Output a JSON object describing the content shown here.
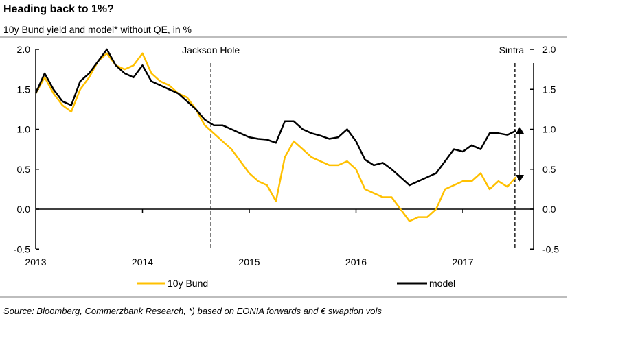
{
  "title": "Heading back to 1%?",
  "subtitle": "10y Bund yield and model* without QE, in %",
  "source": "Source: Bloomberg, Commerzbank Research, *) based on EONIA forwards and € swaption vols",
  "chart_data": {
    "type": "line",
    "ylim": [
      -0.5,
      2.0
    ],
    "yticks": [
      "2.0",
      "1.5",
      "1.0",
      "0.5",
      "0.0",
      "-0.5"
    ],
    "xticks": [
      "2013",
      "2014",
      "2015",
      "2016",
      "2017"
    ],
    "grid": false,
    "legend": "bottom",
    "annotations": [
      {
        "label": "Jackson Hole",
        "date": "2014-08-22"
      },
      {
        "label": "Sintra",
        "date": "2017-06-27"
      }
    ],
    "x": [
      "2013-01",
      "2013-02",
      "2013-03",
      "2013-04",
      "2013-05",
      "2013-06",
      "2013-07",
      "2013-08",
      "2013-09",
      "2013-10",
      "2013-11",
      "2013-12",
      "2014-01",
      "2014-02",
      "2014-03",
      "2014-04",
      "2014-05",
      "2014-06",
      "2014-07",
      "2014-08",
      "2014-09",
      "2014-10",
      "2014-11",
      "2014-12",
      "2015-01",
      "2015-02",
      "2015-03",
      "2015-04",
      "2015-05",
      "2015-06",
      "2015-07",
      "2015-08",
      "2015-09",
      "2015-10",
      "2015-11",
      "2015-12",
      "2016-01",
      "2016-02",
      "2016-03",
      "2016-04",
      "2016-05",
      "2016-06",
      "2016-07",
      "2016-08",
      "2016-09",
      "2016-10",
      "2016-11",
      "2016-12",
      "2017-01",
      "2017-02",
      "2017-03",
      "2017-04",
      "2017-05",
      "2017-06",
      "2017-06-30"
    ],
    "series": [
      {
        "name": "10y Bund",
        "color": "#ffc000",
        "values": [
          1.45,
          1.65,
          1.45,
          1.3,
          1.22,
          1.5,
          1.65,
          1.85,
          1.95,
          1.8,
          1.75,
          1.8,
          1.95,
          1.7,
          1.6,
          1.55,
          1.45,
          1.4,
          1.25,
          1.05,
          0.95,
          0.85,
          0.75,
          0.6,
          0.45,
          0.35,
          0.3,
          0.1,
          0.65,
          0.85,
          0.75,
          0.65,
          0.6,
          0.55,
          0.55,
          0.6,
          0.5,
          0.25,
          0.2,
          0.15,
          0.15,
          0.0,
          -0.15,
          -0.1,
          -0.1,
          0.0,
          0.25,
          0.3,
          0.35,
          0.35,
          0.45,
          0.25,
          0.35,
          0.28,
          0.4
        ]
      },
      {
        "name": "model",
        "color": "#000000",
        "values": [
          1.45,
          1.7,
          1.5,
          1.35,
          1.3,
          1.6,
          1.7,
          1.85,
          2.0,
          1.8,
          1.7,
          1.65,
          1.8,
          1.6,
          1.55,
          1.5,
          1.45,
          1.35,
          1.25,
          1.12,
          1.05,
          1.05,
          1.0,
          0.95,
          0.9,
          0.88,
          0.87,
          0.83,
          1.1,
          1.1,
          1.0,
          0.95,
          0.92,
          0.88,
          0.9,
          1.0,
          0.85,
          0.62,
          0.55,
          0.58,
          0.5,
          0.4,
          0.3,
          0.35,
          0.4,
          0.45,
          0.6,
          0.75,
          0.72,
          0.8,
          0.75,
          0.95,
          0.95,
          0.93,
          0.98
        ]
      }
    ]
  }
}
